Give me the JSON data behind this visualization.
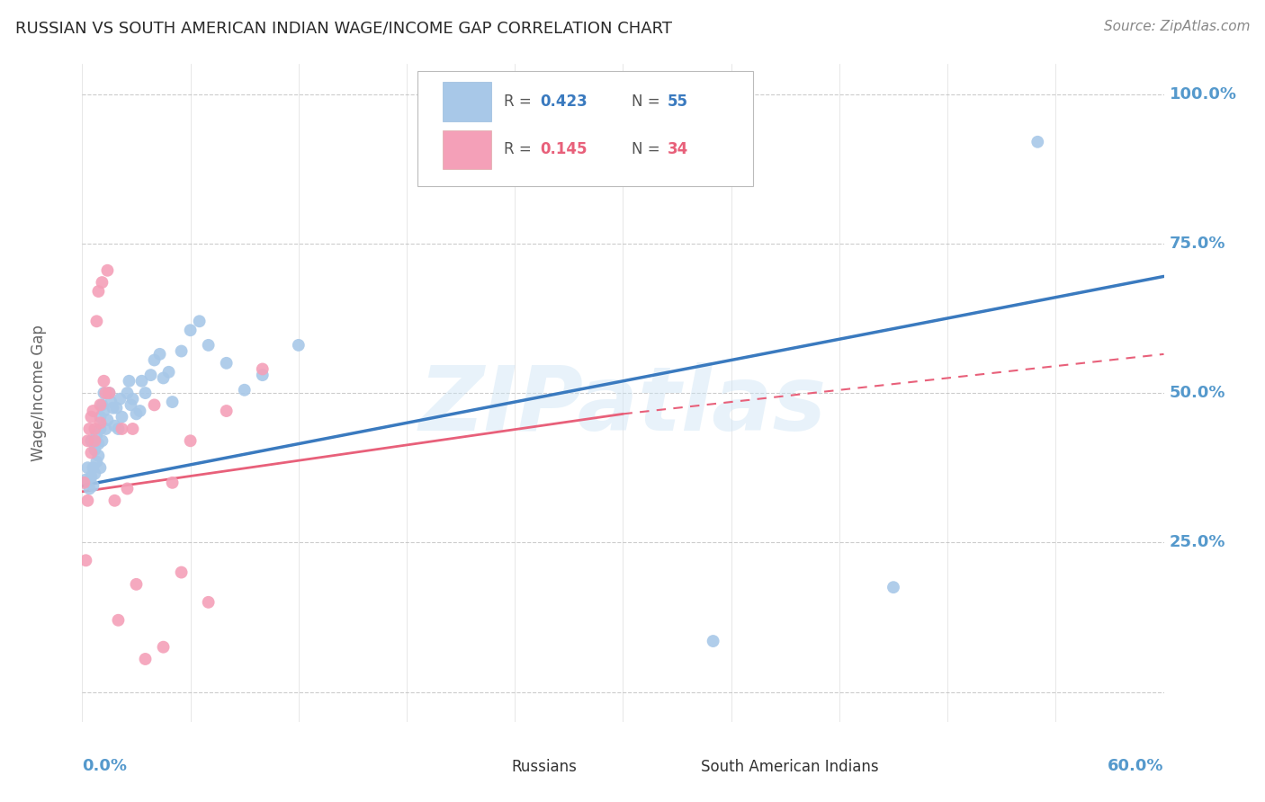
{
  "title": "RUSSIAN VS SOUTH AMERICAN INDIAN WAGE/INCOME GAP CORRELATION CHART",
  "source": "Source: ZipAtlas.com",
  "ylabel": "Wage/Income Gap",
  "watermark": "ZIPatlas",
  "legend_blue_r": "0.423",
  "legend_blue_n": "55",
  "legend_pink_r": "0.145",
  "legend_pink_n": "34",
  "blue_scatter_color": "#a8c8e8",
  "pink_scatter_color": "#f4a0b8",
  "blue_line_color": "#3a7abf",
  "pink_line_color": "#e8607a",
  "pink_dash_color": "#e8607a",
  "right_axis_color": "#5599cc",
  "title_color": "#333333",
  "grid_color": "#cccccc",
  "background_color": "#ffffff",
  "xlim": [
    0.0,
    0.6
  ],
  "ylim": [
    -0.05,
    1.05
  ],
  "blue_line": [
    0.0,
    0.345,
    0.6,
    0.695
  ],
  "pink_solid_line": [
    0.0,
    0.335,
    0.3,
    0.465
  ],
  "pink_dash_line": [
    0.3,
    0.465,
    0.6,
    0.565
  ],
  "russians_x": [
    0.002,
    0.003,
    0.004,
    0.005,
    0.005,
    0.006,
    0.006,
    0.007,
    0.007,
    0.008,
    0.008,
    0.009,
    0.009,
    0.01,
    0.01,
    0.01,
    0.011,
    0.011,
    0.012,
    0.012,
    0.013,
    0.014,
    0.015,
    0.016,
    0.017,
    0.018,
    0.019,
    0.02,
    0.021,
    0.022,
    0.025,
    0.026,
    0.027,
    0.028,
    0.03,
    0.032,
    0.033,
    0.035,
    0.038,
    0.04,
    0.043,
    0.045,
    0.048,
    0.05,
    0.055,
    0.06,
    0.065,
    0.07,
    0.08,
    0.09,
    0.1,
    0.12,
    0.35,
    0.45,
    0.53
  ],
  "russians_y": [
    0.355,
    0.375,
    0.34,
    0.36,
    0.42,
    0.375,
    0.345,
    0.405,
    0.365,
    0.385,
    0.43,
    0.415,
    0.395,
    0.375,
    0.44,
    0.46,
    0.42,
    0.48,
    0.5,
    0.47,
    0.44,
    0.455,
    0.5,
    0.485,
    0.475,
    0.445,
    0.475,
    0.44,
    0.49,
    0.46,
    0.5,
    0.52,
    0.48,
    0.49,
    0.465,
    0.47,
    0.52,
    0.5,
    0.53,
    0.555,
    0.565,
    0.525,
    0.535,
    0.485,
    0.57,
    0.605,
    0.62,
    0.58,
    0.55,
    0.505,
    0.53,
    0.58,
    0.085,
    0.175,
    0.92
  ],
  "south_american_x": [
    0.001,
    0.002,
    0.003,
    0.003,
    0.004,
    0.005,
    0.005,
    0.006,
    0.007,
    0.007,
    0.008,
    0.009,
    0.01,
    0.01,
    0.011,
    0.012,
    0.013,
    0.014,
    0.015,
    0.018,
    0.02,
    0.022,
    0.025,
    0.028,
    0.03,
    0.035,
    0.04,
    0.045,
    0.05,
    0.055,
    0.06,
    0.07,
    0.08,
    0.1
  ],
  "south_american_y": [
    0.35,
    0.22,
    0.32,
    0.42,
    0.44,
    0.46,
    0.4,
    0.47,
    0.44,
    0.42,
    0.62,
    0.67,
    0.48,
    0.45,
    0.685,
    0.52,
    0.5,
    0.705,
    0.5,
    0.32,
    0.12,
    0.44,
    0.34,
    0.44,
    0.18,
    0.055,
    0.48,
    0.075,
    0.35,
    0.2,
    0.42,
    0.15,
    0.47,
    0.54
  ]
}
